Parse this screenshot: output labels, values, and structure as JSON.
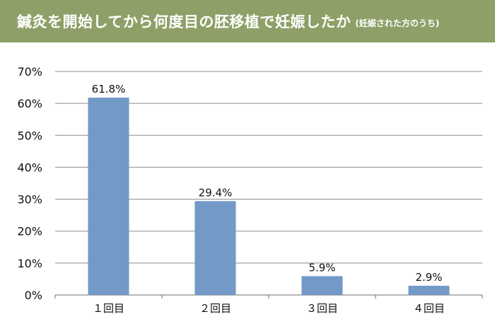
{
  "title": {
    "main": "鍼灸を開始してから何度目の胚移植で妊娠したか",
    "sub": "(妊娠された方のうち)"
  },
  "colors": {
    "banner": "#8ea067",
    "bar": "#7399c6",
    "grid": "#8c8c8c"
  },
  "chart_data": {
    "type": "bar",
    "categories": [
      "１回目",
      "２回目",
      "３回目",
      "４回目"
    ],
    "values": [
      61.8,
      29.4,
      5.9,
      2.9
    ],
    "data_labels": [
      "61.8%",
      "29.4%",
      "5.9%",
      "2.9%"
    ],
    "ylim": [
      0,
      70
    ],
    "yticks": [
      0,
      10,
      20,
      30,
      40,
      50,
      60,
      70
    ],
    "ytick_labels": [
      "0%",
      "10%",
      "20%",
      "30%",
      "40%",
      "50%",
      "60%",
      "70%"
    ],
    "grid": true,
    "legend": "none",
    "xlabel": "",
    "ylabel": ""
  }
}
